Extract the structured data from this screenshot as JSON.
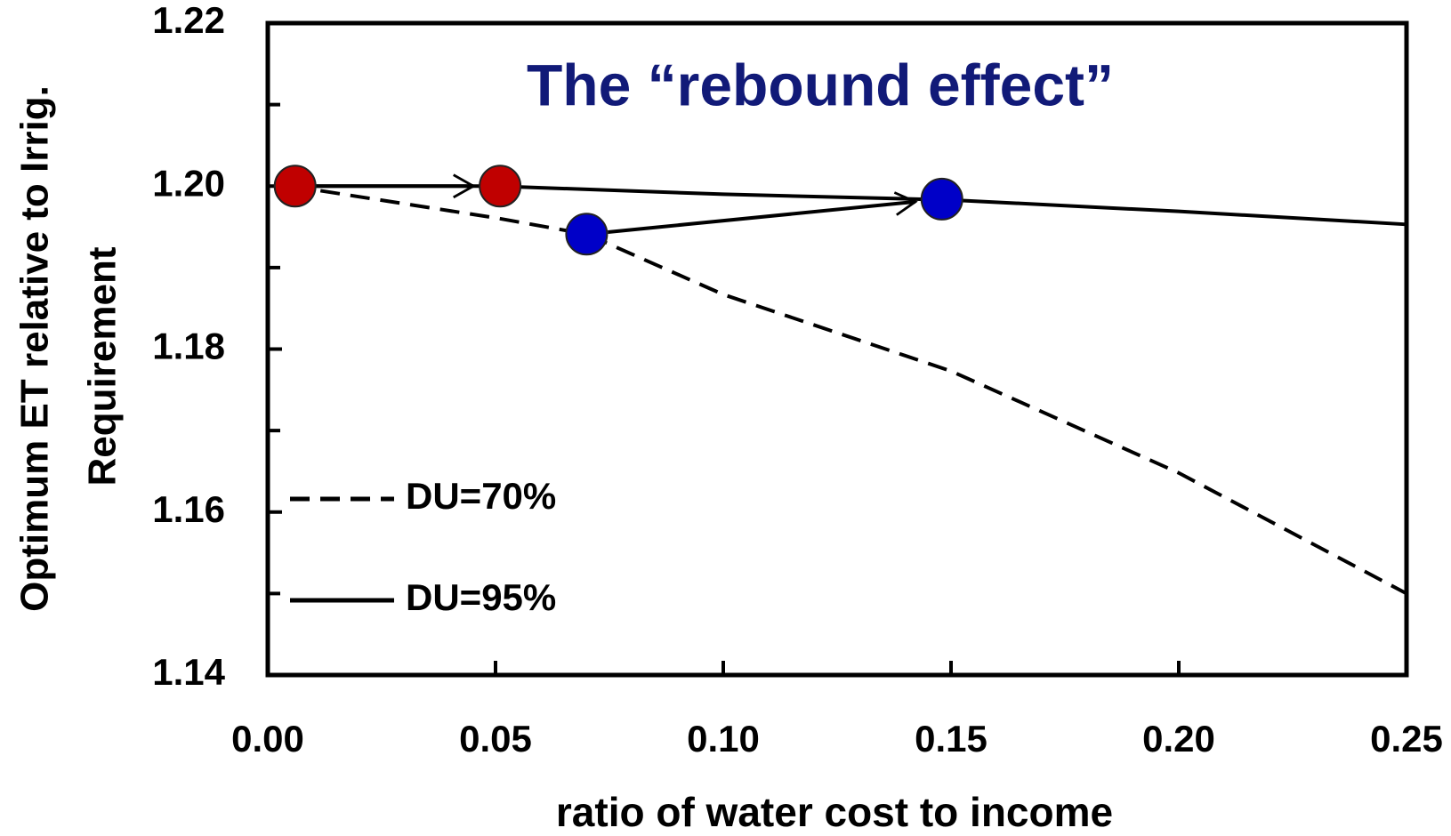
{
  "chart_data": {
    "type": "line",
    "title": "The “rebound effect”",
    "title_color": "#111a78",
    "xlabel": "ratio of water cost to income",
    "ylabel": [
      "Optimum ET relative to Irrig.",
      "Requirement"
    ],
    "x": [
      0.005,
      0.05,
      0.07,
      0.1,
      0.15,
      0.2,
      0.25
    ],
    "series": [
      {
        "name": "DU=70%",
        "color": "#000000",
        "dash": true,
        "values": [
          1.2,
          1.1961,
          1.1941,
          1.1867,
          1.1773,
          1.1648,
          1.15
        ]
      },
      {
        "name": "DU=95%",
        "color": "#000000",
        "dash": false,
        "values": [
          1.2,
          1.2,
          1.1996,
          1.199,
          1.1983,
          1.1969,
          1.1953
        ]
      }
    ],
    "markers": [
      {
        "x": 0.006,
        "y": 1.2,
        "color": "#c00000"
      },
      {
        "x": 0.051,
        "y": 1.2,
        "color": "#c00000"
      },
      {
        "x": 0.07,
        "y": 1.1941,
        "color": "#0000c8"
      },
      {
        "x": 0.148,
        "y": 1.1984,
        "color": "#0000c8"
      }
    ],
    "xlim": [
      0,
      0.25
    ],
    "xticks": [
      {
        "value": 0,
        "label": "0.00"
      },
      {
        "value": 0.05,
        "label": "0.05"
      },
      {
        "value": 0.1,
        "label": "0.10"
      },
      {
        "value": 0.15,
        "label": "0.15"
      },
      {
        "value": 0.2,
        "label": "0.20"
      },
      {
        "value": 0.25,
        "label": "0.25"
      }
    ],
    "ylim": [
      1.14,
      1.22
    ],
    "yticks": [
      1.14,
      {
        "value": 1.16,
        "label": "1.16"
      },
      {
        "value": 1.18,
        "label": "1.18"
      },
      {
        "value": 1.2,
        "label": "1.20"
      },
      1.22
    ],
    "yticks_minor": [
      1.15,
      1.17,
      1.19,
      1.21
    ],
    "legend": "left"
  }
}
